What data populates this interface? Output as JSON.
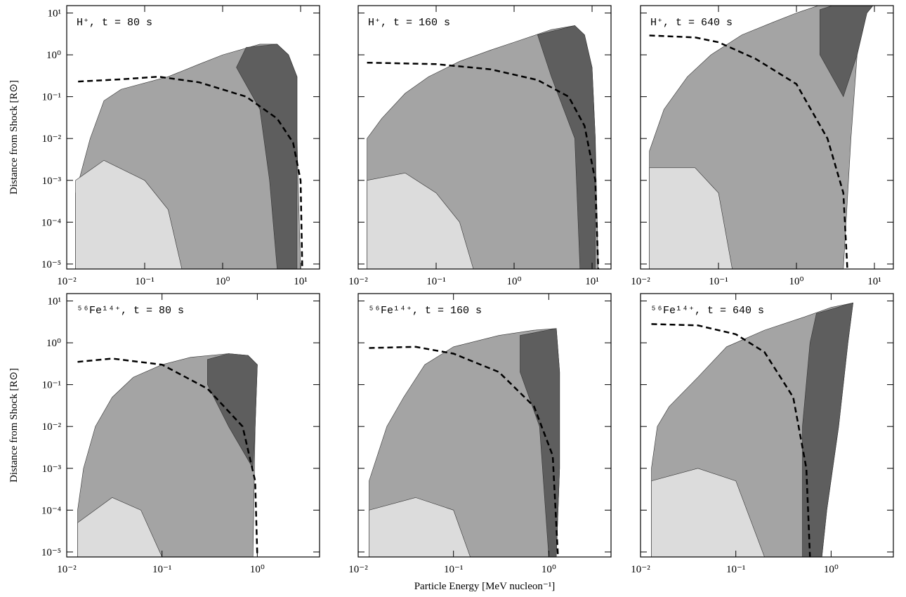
{
  "chart_data": [
    {
      "type": "contour",
      "title": "H⁺, t = 80 s",
      "y_label": "Distance from Shock [R⊙]",
      "log_x": true,
      "log_y": true,
      "xlim": [
        0.01,
        17.5
      ],
      "ylim": [
        7.6e-06,
        15
      ],
      "xticks": [
        {
          "value": 0.01,
          "label": "10⁻²"
        },
        {
          "value": 0.1,
          "label": "10⁻¹"
        },
        {
          "value": 1,
          "label": "10⁰"
        },
        {
          "value": 10,
          "label": "10¹"
        }
      ],
      "yticks": [
        {
          "value": 1e-05,
          "label": "10⁻⁵"
        },
        {
          "value": 0.0001,
          "label": "10⁻⁴"
        },
        {
          "value": 0.001,
          "label": "10⁻³"
        },
        {
          "value": 0.01,
          "label": "10⁻²"
        },
        {
          "value": 0.1,
          "label": "10⁻¹"
        },
        {
          "value": 1,
          "label": "10⁰"
        },
        {
          "value": 10,
          "label": "10¹"
        }
      ],
      "regions": [
        {
          "color": "#a4a4a4",
          "x": [
            0.013,
            0.013,
            0.02,
            0.03,
            0.05,
            0.2,
            0.5,
            1,
            3,
            5,
            7,
            9,
            9,
            10
          ],
          "y": [
            7.6e-06,
            0.0005,
            0.01,
            0.08,
            0.15,
            0.3,
            0.6,
            1.0,
            1.8,
            1.8,
            1.0,
            0.3,
            0.01,
            7.6e-06
          ]
        },
        {
          "color": "#5e5e5e",
          "x": [
            2,
            5,
            7,
            9,
            9,
            5,
            4,
            3,
            1.5
          ],
          "y": [
            1.5,
            1.8,
            1,
            0.3,
            7.6e-06,
            7.6e-06,
            0.001,
            0.05,
            0.5
          ]
        },
        {
          "color": "#dcdcdc",
          "x": [
            0.013,
            0.013,
            0.03,
            0.1,
            0.2,
            0.3
          ],
          "y": [
            7.6e-06,
            0.001,
            0.003,
            0.001,
            0.0002,
            7.6e-06
          ]
        }
      ],
      "curve": {
        "color": "#000000",
        "x": [
          0.014,
          0.05,
          0.15,
          0.5,
          2,
          5,
          8,
          10,
          10.5
        ],
        "y": [
          0.23,
          0.26,
          0.3,
          0.22,
          0.1,
          0.03,
          0.008,
          0.001,
          7.6e-06
        ]
      }
    },
    {
      "type": "contour",
      "title": "H⁺, t = 160 s",
      "log_x": true,
      "log_y": true,
      "xlim": [
        0.01,
        17.5
      ],
      "ylim": [
        7.6e-06,
        15
      ],
      "xticks": [
        {
          "value": 0.01,
          "label": "10⁻²"
        },
        {
          "value": 0.1,
          "label": "10⁻¹"
        },
        {
          "value": 1,
          "label": "10⁰"
        },
        {
          "value": 10,
          "label": "10¹"
        }
      ],
      "yticks": [
        1e-05,
        0.0001,
        0.001,
        0.01,
        0.1,
        1,
        10
      ],
      "regions": [
        {
          "color": "#a4a4a4",
          "x": [
            0.013,
            0.013,
            0.02,
            0.04,
            0.08,
            0.2,
            0.5,
            1,
            3,
            6,
            8,
            10,
            11,
            12
          ],
          "y": [
            7.6e-06,
            0.01,
            0.03,
            0.12,
            0.3,
            0.7,
            1.3,
            2,
            4,
            5,
            3,
            0.5,
            0.01,
            7.6e-06
          ]
        },
        {
          "color": "#5e5e5e",
          "x": [
            2,
            6,
            8,
            10,
            11,
            11,
            7,
            6,
            3
          ],
          "y": [
            3,
            5,
            3,
            0.5,
            0.01,
            7.6e-06,
            7.6e-06,
            0.01,
            0.3
          ]
        },
        {
          "color": "#dcdcdc",
          "x": [
            0.013,
            0.013,
            0.04,
            0.1,
            0.2,
            0.3
          ],
          "y": [
            7.6e-06,
            0.001,
            0.0015,
            0.0005,
            0.0001,
            7.6e-06
          ]
        }
      ],
      "curve": {
        "color": "#000000",
        "x": [
          0.013,
          0.1,
          0.5,
          2,
          5,
          8,
          11,
          12
        ],
        "y": [
          0.65,
          0.6,
          0.45,
          0.25,
          0.1,
          0.02,
          0.001,
          7.6e-06
        ]
      }
    },
    {
      "type": "contour",
      "title": "H⁺, t = 640 s",
      "log_x": true,
      "log_y": true,
      "xlim": [
        0.01,
        17.5
      ],
      "ylim": [
        7.6e-06,
        15
      ],
      "xticks": [
        {
          "value": 0.01,
          "label": "10⁻²"
        },
        {
          "value": 0.1,
          "label": "10⁻¹"
        },
        {
          "value": 1,
          "label": "10⁰"
        },
        {
          "value": 10,
          "label": "10¹"
        }
      ],
      "yticks": [
        1e-05,
        0.0001,
        0.001,
        0.01,
        0.1,
        1,
        10
      ],
      "regions": [
        {
          "color": "#a4a4a4",
          "x": [
            0.013,
            0.013,
            0.02,
            0.04,
            0.08,
            0.2,
            0.5,
            1,
            3,
            10,
            12,
            8,
            6,
            5,
            4
          ],
          "y": [
            7.6e-06,
            0.005,
            0.05,
            0.3,
            1,
            3,
            6,
            10,
            20,
            28,
            25,
            10,
            1,
            0.01,
            7.6e-06
          ]
        },
        {
          "color": "#5e5e5e",
          "x": [
            2,
            8,
            12,
            8,
            6,
            4,
            2
          ],
          "y": [
            12,
            28,
            25,
            10,
            1,
            0.1,
            1
          ]
        },
        {
          "color": "#dcdcdc",
          "x": [
            0.013,
            0.013,
            0.05,
            0.1,
            0.15
          ],
          "y": [
            7.6e-06,
            0.002,
            0.002,
            0.0005,
            7.6e-06
          ]
        }
      ],
      "curve": {
        "color": "#000000",
        "x": [
          0.013,
          0.05,
          0.1,
          0.3,
          1,
          2.5,
          4,
          4.5
        ],
        "y": [
          2.9,
          2.6,
          2.0,
          0.8,
          0.2,
          0.01,
          0.0005,
          7.6e-06
        ]
      }
    },
    {
      "type": "contour",
      "title": "⁵⁶Fe¹⁴⁺, t = 80 s",
      "y_label": "Distance from Shock [R⊙]",
      "log_x": true,
      "log_y": true,
      "xlim": [
        0.01,
        4.5
      ],
      "ylim": [
        7.6e-06,
        15
      ],
      "xticks": [
        {
          "value": 0.01,
          "label": "10⁻²"
        },
        {
          "value": 0.1,
          "label": "10⁻¹"
        },
        {
          "value": 1,
          "label": "10⁰"
        }
      ],
      "yticks": [
        {
          "value": 1e-05,
          "label": "10⁻⁵"
        },
        {
          "value": 0.0001,
          "label": "10⁻⁴"
        },
        {
          "value": 0.001,
          "label": "10⁻³"
        },
        {
          "value": 0.01,
          "label": "10⁻²"
        },
        {
          "value": 0.1,
          "label": "10⁻¹"
        },
        {
          "value": 1,
          "label": "10⁰"
        },
        {
          "value": 10,
          "label": "10¹"
        }
      ],
      "regions": [
        {
          "color": "#a4a4a4",
          "x": [
            0.013,
            0.013,
            0.015,
            0.02,
            0.03,
            0.05,
            0.1,
            0.2,
            0.5,
            0.8,
            1.0,
            0.95,
            0.9
          ],
          "y": [
            7.6e-06,
            0.0001,
            0.001,
            0.01,
            0.05,
            0.15,
            0.3,
            0.45,
            0.55,
            0.5,
            0.3,
            0.01,
            7.6e-06
          ]
        },
        {
          "color": "#5e5e5e",
          "x": [
            0.3,
            0.5,
            0.8,
            1,
            0.95,
            0.9,
            0.5,
            0.3
          ],
          "y": [
            0.4,
            0.55,
            0.5,
            0.3,
            0.01,
            0.001,
            0.01,
            0.1
          ]
        },
        {
          "color": "#dcdcdc",
          "x": [
            0.013,
            0.013,
            0.03,
            0.06,
            0.1
          ],
          "y": [
            7.6e-06,
            5e-05,
            0.0002,
            0.0001,
            7.6e-06
          ]
        }
      ],
      "curve": {
        "color": "#000000",
        "x": [
          0.013,
          0.03,
          0.1,
          0.3,
          0.7,
          0.95,
          1.0
        ],
        "y": [
          0.35,
          0.42,
          0.3,
          0.08,
          0.01,
          0.0005,
          7.6e-06
        ]
      }
    },
    {
      "type": "contour",
      "title": "⁵⁶Fe¹⁴⁺, t = 160 s",
      "x_label": "Particle Energy [MeV nucleon⁻¹]",
      "log_x": true,
      "log_y": true,
      "xlim": [
        0.01,
        4.5
      ],
      "ylim": [
        7.6e-06,
        15
      ],
      "xticks": [
        {
          "value": 0.01,
          "label": "10⁻²"
        },
        {
          "value": 0.1,
          "label": "10⁻¹"
        },
        {
          "value": 1,
          "label": "10⁰"
        }
      ],
      "yticks": [
        1e-05,
        0.0001,
        0.001,
        0.01,
        0.1,
        1,
        10
      ],
      "regions": [
        {
          "color": "#a4a4a4",
          "x": [
            0.013,
            0.013,
            0.02,
            0.03,
            0.05,
            0.1,
            0.3,
            0.7,
            1.2,
            1.3,
            1.3,
            1.2
          ],
          "y": [
            7.6e-06,
            0.0005,
            0.01,
            0.05,
            0.3,
            0.8,
            1.5,
            2,
            2.2,
            0.2,
            0.001,
            7.6e-06
          ]
        },
        {
          "color": "#5e5e5e",
          "x": [
            0.5,
            1.2,
            1.3,
            1.3,
            1.2,
            1,
            0.8,
            0.5
          ],
          "y": [
            1.5,
            2.2,
            0.2,
            0.001,
            7.6e-06,
            7.6e-06,
            0.01,
            0.2
          ]
        },
        {
          "color": "#dcdcdc",
          "x": [
            0.013,
            0.013,
            0.04,
            0.1,
            0.15
          ],
          "y": [
            7.6e-06,
            0.0001,
            0.0002,
            0.0001,
            7.6e-06
          ]
        }
      ],
      "curve": {
        "color": "#000000",
        "x": [
          0.013,
          0.04,
          0.1,
          0.3,
          0.7,
          1.1,
          1.25
        ],
        "y": [
          0.75,
          0.8,
          0.55,
          0.2,
          0.03,
          0.002,
          7.6e-06
        ]
      }
    },
    {
      "type": "contour",
      "title": "⁵⁶Fe¹⁴⁺, t = 640 s",
      "log_x": true,
      "log_y": true,
      "xlim": [
        0.01,
        4.5
      ],
      "ylim": [
        7.6e-06,
        15
      ],
      "xticks": [
        {
          "value": 0.01,
          "label": "10⁻²"
        },
        {
          "value": 0.1,
          "label": "10⁻¹"
        },
        {
          "value": 1,
          "label": "10⁰"
        }
      ],
      "yticks": [
        1e-05,
        0.0001,
        0.001,
        0.01,
        0.1,
        1,
        10
      ],
      "regions": [
        {
          "color": "#a4a4a4",
          "x": [
            0.013,
            0.013,
            0.015,
            0.02,
            0.04,
            0.08,
            0.2,
            0.5,
            1,
            1.7,
            1.5,
            1.2,
            0.9,
            0.8
          ],
          "y": [
            7.6e-06,
            0.001,
            0.01,
            0.03,
            0.15,
            0.8,
            2,
            4,
            7,
            9,
            1,
            0.01,
            0.0001,
            7.6e-06
          ]
        },
        {
          "color": "#5e5e5e",
          "x": [
            0.7,
            1.7,
            1.5,
            1.2,
            0.9,
            0.8,
            0.5,
            0.5,
            0.6
          ],
          "y": [
            5,
            9,
            1,
            0.01,
            0.0001,
            7.6e-06,
            7.6e-06,
            0.01,
            1
          ]
        },
        {
          "color": "#dcdcdc",
          "x": [
            0.013,
            0.013,
            0.04,
            0.1,
            0.2
          ],
          "y": [
            7.6e-06,
            0.0005,
            0.001,
            0.0005,
            7.6e-06
          ]
        }
      ],
      "curve": {
        "color": "#000000",
        "x": [
          0.013,
          0.04,
          0.1,
          0.2,
          0.4,
          0.55,
          0.6
        ],
        "y": [
          2.8,
          2.6,
          1.6,
          0.6,
          0.05,
          0.001,
          7.6e-06
        ]
      }
    }
  ]
}
